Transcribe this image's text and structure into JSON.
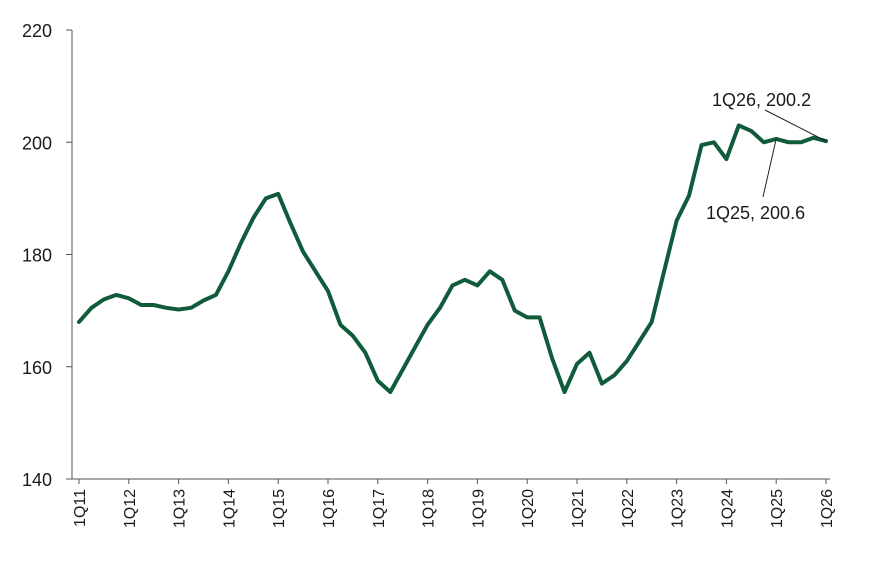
{
  "chart_data": {
    "type": "line",
    "title": "",
    "xlabel": "",
    "ylabel": "",
    "ylim": [
      140,
      220
    ],
    "y_ticks": [
      140,
      160,
      180,
      200,
      220
    ],
    "x_tick_labels": [
      "1Q11",
      "1Q12",
      "1Q13",
      "1Q14",
      "1Q15",
      "1Q16",
      "1Q17",
      "1Q18",
      "1Q19",
      "1Q20",
      "1Q21",
      "1Q22",
      "1Q23",
      "1Q24",
      "1Q25",
      "1Q26"
    ],
    "grid": false,
    "line_color": "#0f5b3a",
    "series": [
      {
        "x": [
          "1Q11",
          "2Q11",
          "3Q11",
          "4Q11",
          "1Q12",
          "2Q12",
          "3Q12",
          "4Q12",
          "1Q13",
          "2Q13",
          "3Q13",
          "4Q13",
          "1Q14",
          "2Q14",
          "3Q14",
          "4Q14",
          "1Q15",
          "2Q15",
          "3Q15",
          "4Q15",
          "1Q16",
          "2Q16",
          "3Q16",
          "4Q16",
          "1Q17",
          "2Q17",
          "3Q17",
          "4Q17",
          "1Q18",
          "2Q18",
          "3Q18",
          "4Q18",
          "1Q19",
          "2Q19",
          "3Q19",
          "4Q19",
          "1Q20",
          "2Q20",
          "3Q20",
          "4Q20",
          "1Q21",
          "2Q21",
          "3Q21",
          "4Q21",
          "1Q22",
          "2Q22",
          "3Q22",
          "4Q22",
          "1Q23",
          "2Q23",
          "3Q23",
          "4Q23",
          "1Q24",
          "2Q24",
          "3Q24",
          "4Q24",
          "1Q25",
          "2Q25",
          "3Q25",
          "4Q25",
          "1Q26"
        ],
        "values": [
          168.0,
          170.5,
          172.0,
          172.8,
          172.2,
          171.0,
          171.0,
          170.5,
          170.2,
          170.5,
          171.8,
          172.8,
          177.0,
          182.0,
          186.5,
          190.0,
          190.8,
          185.5,
          180.5,
          177.0,
          173.5,
          167.5,
          165.5,
          162.5,
          157.5,
          155.5,
          159.5,
          163.5,
          167.5,
          170.5,
          174.5,
          175.5,
          174.5,
          177.0,
          175.5,
          170.0,
          168.8,
          168.8,
          161.5,
          155.5,
          160.5,
          162.5,
          157.0,
          158.5,
          161.0,
          164.5,
          168.0,
          177.0,
          186.0,
          190.5,
          199.5,
          200.0,
          197.0,
          203.0,
          202.0,
          200.0,
          200.6,
          200.0,
          200.0,
          200.8,
          200.2
        ]
      }
    ],
    "annotations": [
      {
        "text": "1Q26, 200.2",
        "x": "1Q26",
        "y": 200.2
      },
      {
        "text": "1Q25, 200.6",
        "x": "1Q25",
        "y": 200.6
      }
    ]
  }
}
